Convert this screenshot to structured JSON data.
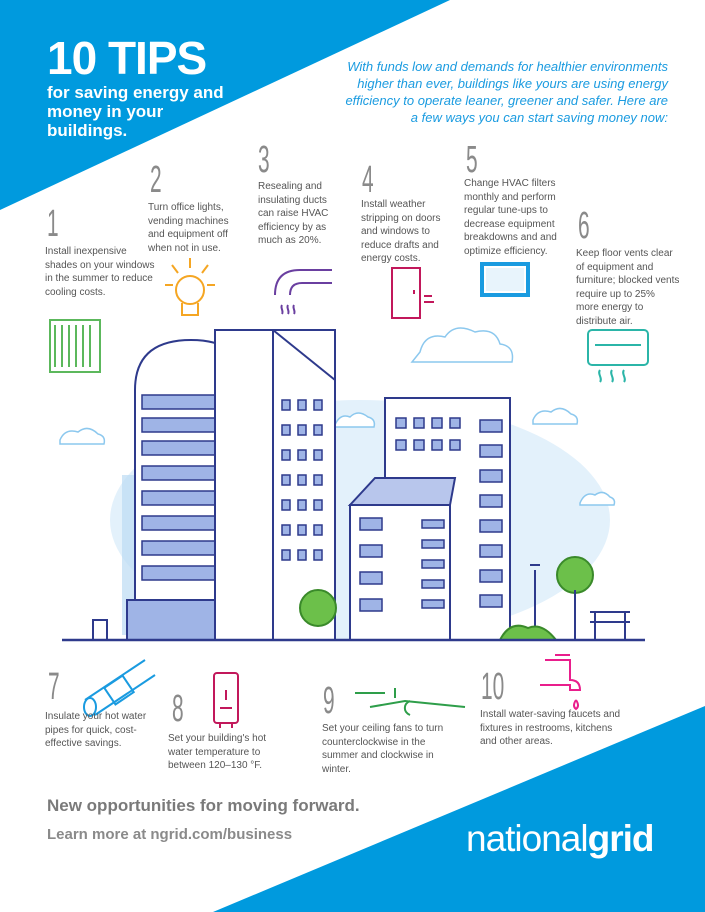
{
  "header": {
    "title": "10 TIPS",
    "subtitle": "for saving energy and money in your buildings.",
    "intro": "With funds low and demands for healthier environments higher than ever, buildings like yours are using energy efficiency to operate leaner, greener and safer. Here are a few ways you can start saving money now:"
  },
  "tips": [
    {
      "number": "1",
      "text": "Install inexpensive shades on your windows in the summer to reduce cooling costs.",
      "icon": "window-shade-icon"
    },
    {
      "number": "2",
      "text": "Turn office lights, vending machines and equipment off when not in use.",
      "icon": "light-bulb-icon"
    },
    {
      "number": "3",
      "text": "Resealing and insulating ducts can raise HVAC efficiency by as much as 20%.",
      "icon": "duct-icon"
    },
    {
      "number": "4",
      "text": "Install weather stripping on doors and windows to reduce drafts and energy costs.",
      "icon": "door-draft-icon"
    },
    {
      "number": "5",
      "text": "Change HVAC filters monthly and perform regular tune-ups to decrease equipment breakdowns and and optimize efficiency.",
      "icon": "air-filter-icon"
    },
    {
      "number": "6",
      "text": "Keep floor vents clear of equipment and furniture; blocked vents require up to 25% more energy to distribute air.",
      "icon": "air-vent-icon"
    },
    {
      "number": "7",
      "text": "Insulate your hot water pipes for quick, cost-effective savings.",
      "icon": "insulated-pipe-icon"
    },
    {
      "number": "8",
      "text": "Set your building's hot water temperature to between 120–130 °F.",
      "icon": "water-heater-icon"
    },
    {
      "number": "9",
      "text": "Set your ceiling fans to turn counterclockwise in the summer and clockwise in winter.",
      "icon": "ceiling-fan-icon"
    },
    {
      "number": "10",
      "text": "Install water-saving faucets and fixtures in restrooms, kitchens and other areas.",
      "icon": "faucet-icon"
    }
  ],
  "footer": {
    "line1": "New opportunities for moving forward.",
    "line2": "Learn more at ngrid.com/business",
    "logo_part1": "national",
    "logo_part2": "grid"
  },
  "colors": {
    "brand_blue": "#009ADE",
    "gray_text": "#555555",
    "navy": "#2e3a8c"
  }
}
